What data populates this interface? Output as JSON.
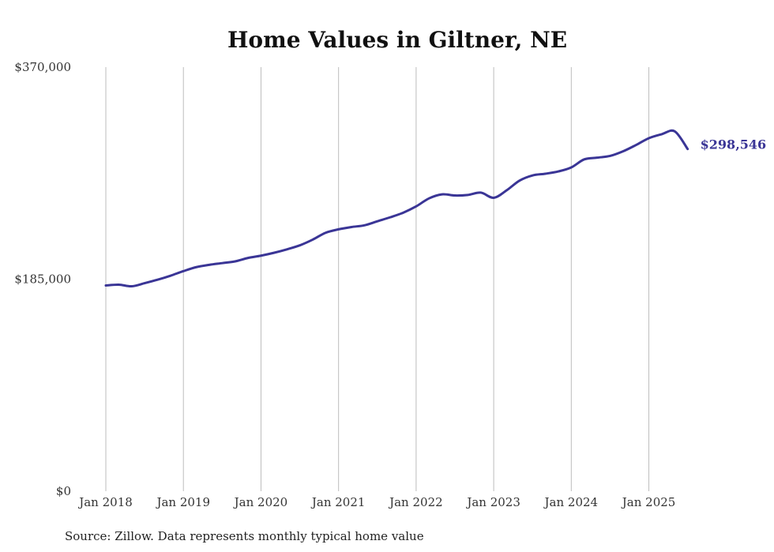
{
  "chart_data": {
    "type": "line",
    "title": "Home Values in Giltner, NE",
    "xlabel": "",
    "ylabel": "",
    "ylim": [
      0,
      370000
    ],
    "yticks": [
      {
        "value": 0,
        "label": "$0"
      },
      {
        "value": 185000,
        "label": "$185,000"
      },
      {
        "value": 370000,
        "label": "$370,000"
      }
    ],
    "xticks": [
      {
        "value": "2018-01",
        "label": "Jan 2018"
      },
      {
        "value": "2019-01",
        "label": "Jan 2019"
      },
      {
        "value": "2020-01",
        "label": "Jan 2020"
      },
      {
        "value": "2021-01",
        "label": "Jan 2021"
      },
      {
        "value": "2022-01",
        "label": "Jan 2022"
      },
      {
        "value": "2023-01",
        "label": "Jan 2023"
      },
      {
        "value": "2024-01",
        "label": "Jan 2024"
      },
      {
        "value": "2025-01",
        "label": "Jan 2025"
      }
    ],
    "grid": "vertical",
    "series": [
      {
        "color": "#3a3596",
        "end_label": "$298,546",
        "points": [
          [
            "2018-01",
            179500
          ],
          [
            "2018-03",
            180200
          ],
          [
            "2018-05",
            178800
          ],
          [
            "2018-07",
            181500
          ],
          [
            "2018-09",
            184500
          ],
          [
            "2018-11",
            188000
          ],
          [
            "2019-01",
            192000
          ],
          [
            "2019-03",
            195500
          ],
          [
            "2019-05",
            197500
          ],
          [
            "2019-07",
            199000
          ],
          [
            "2019-09",
            200500
          ],
          [
            "2019-11",
            203500
          ],
          [
            "2020-01",
            205500
          ],
          [
            "2020-03",
            208000
          ],
          [
            "2020-05",
            211000
          ],
          [
            "2020-07",
            214500
          ],
          [
            "2020-09",
            219500
          ],
          [
            "2020-11",
            225500
          ],
          [
            "2021-01",
            228500
          ],
          [
            "2021-03",
            230500
          ],
          [
            "2021-05",
            232000
          ],
          [
            "2021-07",
            235500
          ],
          [
            "2021-09",
            239000
          ],
          [
            "2021-11",
            243000
          ],
          [
            "2022-01",
            248500
          ],
          [
            "2022-03",
            255500
          ],
          [
            "2022-05",
            259000
          ],
          [
            "2022-07",
            258000
          ],
          [
            "2022-09",
            258500
          ],
          [
            "2022-11",
            260500
          ],
          [
            "2023-01",
            256000
          ],
          [
            "2023-03",
            262500
          ],
          [
            "2023-05",
            271000
          ],
          [
            "2023-07",
            275500
          ],
          [
            "2023-09",
            277000
          ],
          [
            "2023-11",
            279000
          ],
          [
            "2024-01",
            282500
          ],
          [
            "2024-03",
            289500
          ],
          [
            "2024-05",
            291000
          ],
          [
            "2024-07",
            292500
          ],
          [
            "2024-09",
            296500
          ],
          [
            "2024-11",
            302000
          ],
          [
            "2025-01",
            308000
          ],
          [
            "2025-03",
            311500
          ],
          [
            "2025-05",
            314000
          ],
          [
            "2025-07",
            298546
          ]
        ]
      }
    ]
  },
  "footer": {
    "source": "Source: Zillow. Data represents monthly typical home value"
  }
}
